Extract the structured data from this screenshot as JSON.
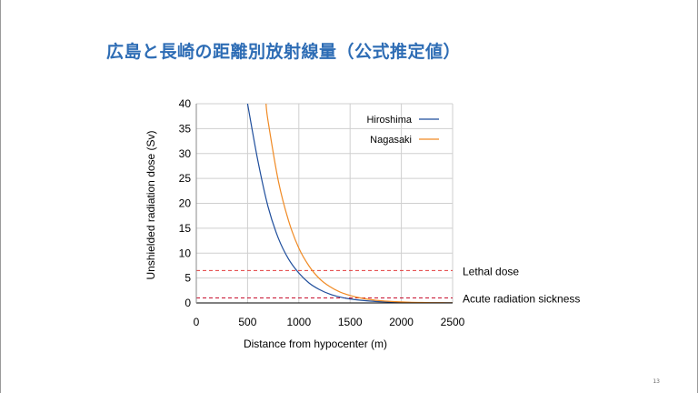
{
  "slide": {
    "title": "広島と長崎の距離別放射線量（公式推定値）",
    "page_number": "13"
  },
  "chart_data": {
    "type": "line",
    "xlabel": "Distance from hypocenter (m)",
    "ylabel": "Unshielded radiation dose (Sv)",
    "xlim": [
      0,
      2500
    ],
    "ylim": [
      0,
      40
    ],
    "xticks": [
      0,
      500,
      1000,
      1500,
      2000,
      2500
    ],
    "yticks": [
      0,
      5,
      10,
      15,
      20,
      25,
      30,
      35,
      40
    ],
    "grid": true,
    "legend_position": "top-right",
    "series": [
      {
        "name": "Hiroshima",
        "color": "#1f4e9c",
        "x": [
          500,
          600,
          700,
          800,
          900,
          1000,
          1100,
          1200,
          1300,
          1400,
          1500,
          1600,
          1700,
          1800,
          1900,
          2000,
          2100,
          2200,
          2300,
          2400,
          2500
        ],
        "y": [
          40,
          28.6,
          19.3,
          13,
          8.8,
          6,
          4.0,
          2.7,
          1.8,
          1.2,
          0.8,
          0.55,
          0.37,
          0.25,
          0.17,
          0.11,
          0.08,
          0.05,
          0.035,
          0.025,
          0.017
        ]
      },
      {
        "name": "Nagasaki",
        "color": "#f08a24",
        "x": [
          680,
          700,
          800,
          900,
          1000,
          1100,
          1200,
          1300,
          1400,
          1500,
          1600,
          1700,
          1800,
          1900,
          2000,
          2100,
          2200,
          2300,
          2400,
          2500
        ],
        "y": [
          40,
          36.5,
          24.5,
          16.5,
          11,
          7.4,
          4.9,
          3.3,
          2.2,
          1.5,
          1.0,
          0.66,
          0.44,
          0.3,
          0.2,
          0.13,
          0.09,
          0.06,
          0.04,
          0.027
        ]
      }
    ],
    "reference_lines": [
      {
        "label": "Lethal dose",
        "y": 6.5,
        "color": "#e23b3b"
      },
      {
        "label": "Acute radiation sickness",
        "y": 1,
        "color": "#c8102e"
      }
    ]
  }
}
